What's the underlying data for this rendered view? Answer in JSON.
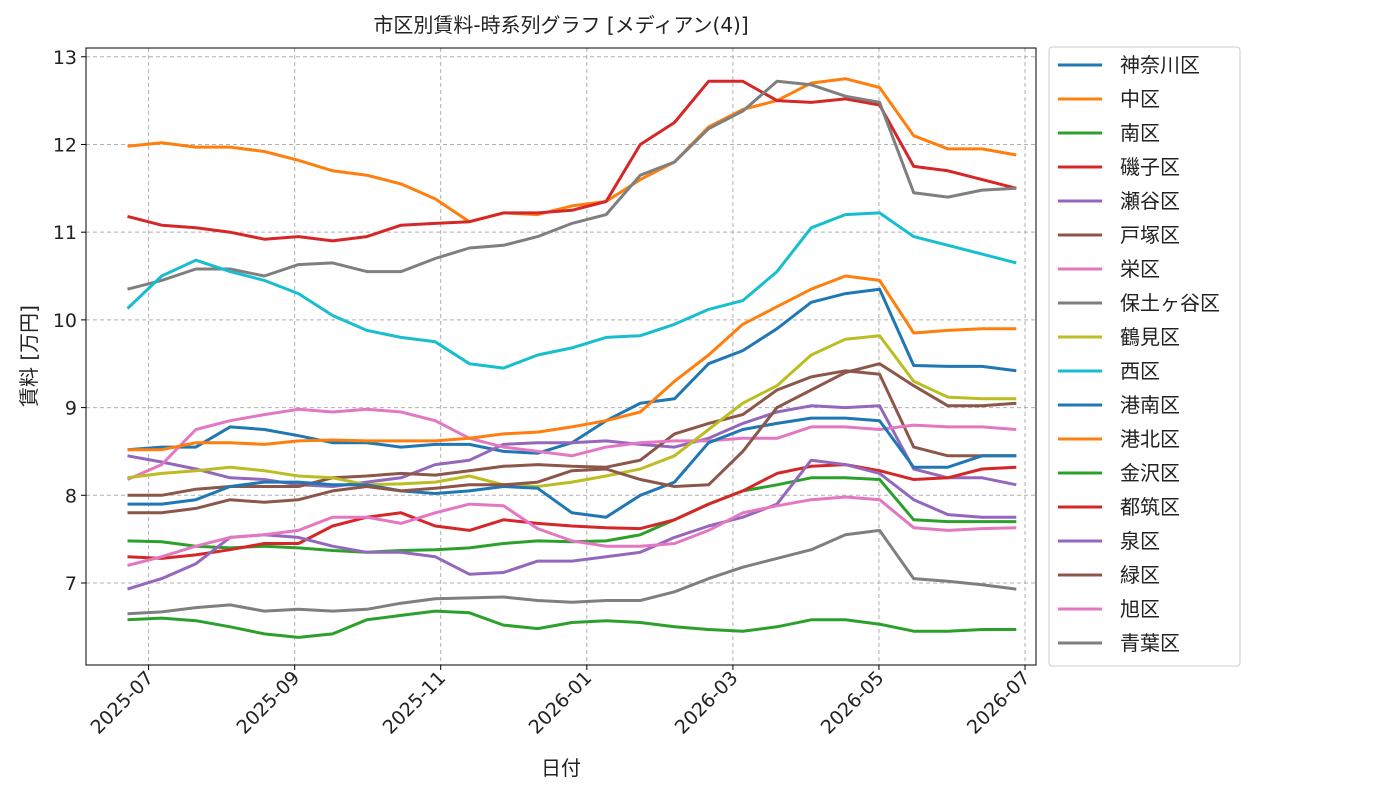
{
  "chart_data": {
    "type": "line",
    "title": "市区別賃料-時系列グラフ [メディアン(4)]",
    "xlabel": "日付",
    "ylabel": "賃料 [万円]",
    "xlim": [
      2025.4286,
      2026.5125
    ],
    "ylim": [
      6.065,
      13.1
    ],
    "xticks": [
      {
        "value": 2025.5,
        "label": "2025-07"
      },
      {
        "value": 2025.6667,
        "label": "2025-09"
      },
      {
        "value": 2025.8333,
        "label": "2025-11"
      },
      {
        "value": 2026.0,
        "label": "2026-01"
      },
      {
        "value": 2026.1667,
        "label": "2026-03"
      },
      {
        "value": 2026.3333,
        "label": "2026-05"
      },
      {
        "value": 2026.5,
        "label": "2026-07"
      }
    ],
    "yticks": [
      7,
      8,
      9,
      10,
      11,
      12,
      13
    ],
    "grid": true,
    "legend": "outside-right",
    "x": [
      2025.476,
      2025.515,
      2025.554,
      2025.593,
      2025.632,
      2025.671,
      2025.71,
      2025.749,
      2025.788,
      2025.827,
      2025.866,
      2025.905,
      2025.944,
      2025.983,
      2026.022,
      2026.061,
      2026.1,
      2026.139,
      2026.178,
      2026.217,
      2026.256,
      2026.295,
      2026.334,
      2026.373,
      2026.412,
      2026.451,
      2026.49
    ],
    "series": [
      {
        "name": "神奈川区",
        "color": "#1f77b4",
        "values": [
          8.52,
          8.55,
          8.55,
          8.78,
          8.75,
          8.68,
          8.6,
          8.6,
          8.55,
          8.58,
          8.58,
          8.5,
          8.48,
          8.6,
          8.85,
          9.05,
          9.1,
          9.5,
          9.65,
          9.9,
          10.2,
          10.3,
          10.35,
          9.48,
          9.47,
          9.47,
          9.42
        ]
      },
      {
        "name": "中区",
        "color": "#ff7f0e",
        "values": [
          11.98,
          12.02,
          11.97,
          11.97,
          11.92,
          11.82,
          11.7,
          11.65,
          11.55,
          11.38,
          11.12,
          11.22,
          11.2,
          11.3,
          11.35,
          11.6,
          11.8,
          12.2,
          12.4,
          12.5,
          12.7,
          12.75,
          12.65,
          12.1,
          11.95,
          11.95,
          11.88
        ]
      },
      {
        "name": "南区",
        "color": "#2ca02c",
        "values": [
          7.48,
          7.47,
          7.42,
          7.4,
          7.42,
          7.4,
          7.37,
          7.35,
          7.37,
          7.38,
          7.4,
          7.45,
          7.48,
          7.47,
          7.48,
          7.55,
          7.72,
          7.9,
          8.05,
          8.12,
          8.2,
          8.2,
          8.18,
          7.72,
          7.7,
          7.7,
          7.7
        ]
      },
      {
        "name": "磯子区",
        "color": "#d62728",
        "values": [
          11.18,
          11.08,
          11.05,
          11.0,
          10.92,
          10.95,
          10.9,
          10.95,
          11.08,
          11.1,
          11.12,
          11.22,
          11.22,
          11.25,
          11.35,
          12.0,
          12.25,
          12.72,
          12.72,
          12.5,
          12.48,
          12.52,
          12.45,
          11.75,
          11.7,
          11.6,
          11.5
        ]
      },
      {
        "name": "瀬谷区",
        "color": "#9467bd",
        "values": [
          8.45,
          8.38,
          8.3,
          8.2,
          8.18,
          8.12,
          8.1,
          8.15,
          8.2,
          8.35,
          8.4,
          8.58,
          8.6,
          8.6,
          8.62,
          8.58,
          8.55,
          8.65,
          8.82,
          8.95,
          9.02,
          9.0,
          9.02,
          8.3,
          8.2,
          8.2,
          8.12
        ]
      },
      {
        "name": "戸塚区",
        "color": "#8c564b",
        "values": [
          8.0,
          8.0,
          8.07,
          8.1,
          8.1,
          8.1,
          8.2,
          8.22,
          8.25,
          8.23,
          8.28,
          8.33,
          8.35,
          8.33,
          8.32,
          8.4,
          8.7,
          8.82,
          8.92,
          9.2,
          9.35,
          9.42,
          9.38,
          8.55,
          8.45,
          8.45,
          8.45
        ]
      },
      {
        "name": "栄区",
        "color": "#e377c2",
        "values": [
          8.18,
          8.35,
          8.75,
          8.85,
          8.92,
          8.98,
          8.95,
          8.98,
          8.95,
          8.85,
          8.65,
          8.55,
          8.5,
          8.45,
          8.55,
          8.6,
          8.62,
          8.62,
          8.65,
          8.65,
          8.78,
          8.78,
          8.75,
          8.8,
          8.78,
          8.78,
          8.75
        ]
      },
      {
        "name": "保土ヶ谷区",
        "color": "#7f7f7f",
        "values": [
          10.35,
          10.45,
          10.58,
          10.58,
          10.5,
          10.63,
          10.65,
          10.55,
          10.55,
          10.7,
          10.82,
          10.85,
          10.95,
          11.1,
          11.2,
          11.65,
          11.8,
          12.18,
          12.38,
          12.72,
          12.68,
          12.55,
          12.48,
          11.45,
          11.4,
          11.48,
          11.5
        ]
      },
      {
        "name": "鶴見区",
        "color": "#bcbd22",
        "values": [
          8.2,
          8.25,
          8.28,
          8.32,
          8.28,
          8.22,
          8.2,
          8.12,
          8.13,
          8.15,
          8.22,
          8.12,
          8.1,
          8.15,
          8.22,
          8.3,
          8.45,
          8.75,
          9.05,
          9.25,
          9.6,
          9.78,
          9.82,
          9.3,
          9.12,
          9.1,
          9.1
        ]
      },
      {
        "name": "西区",
        "color": "#17becf",
        "values": [
          10.13,
          10.5,
          10.68,
          10.55,
          10.45,
          10.3,
          10.05,
          9.88,
          9.8,
          9.75,
          9.5,
          9.45,
          9.6,
          9.68,
          9.8,
          9.82,
          9.95,
          10.12,
          10.22,
          10.55,
          11.05,
          11.2,
          11.22,
          10.95,
          10.85,
          10.75,
          10.65
        ]
      },
      {
        "name": "港南区",
        "color": "#1f77b4",
        "values": [
          7.9,
          7.9,
          7.95,
          8.1,
          8.15,
          8.15,
          8.12,
          8.12,
          8.05,
          8.02,
          8.05,
          8.1,
          8.08,
          7.8,
          7.75,
          8.0,
          8.15,
          8.6,
          8.75,
          8.82,
          8.88,
          8.88,
          8.85,
          8.32,
          8.32,
          8.45,
          8.45
        ]
      },
      {
        "name": "港北区",
        "color": "#ff7f0e",
        "values": [
          8.52,
          8.52,
          8.6,
          8.6,
          8.58,
          8.62,
          8.63,
          8.62,
          8.62,
          8.62,
          8.65,
          8.7,
          8.72,
          8.78,
          8.85,
          8.95,
          9.3,
          9.6,
          9.95,
          10.15,
          10.35,
          10.5,
          10.45,
          9.85,
          9.88,
          9.9,
          9.9
        ]
      },
      {
        "name": "金沢区",
        "color": "#2ca02c",
        "values": [
          6.58,
          6.6,
          6.57,
          6.5,
          6.42,
          6.38,
          6.42,
          6.58,
          6.63,
          6.68,
          6.66,
          6.52,
          6.48,
          6.55,
          6.57,
          6.55,
          6.5,
          6.47,
          6.45,
          6.5,
          6.58,
          6.58,
          6.53,
          6.45,
          6.45,
          6.47,
          6.47
        ]
      },
      {
        "name": "都筑区",
        "color": "#d62728",
        "values": [
          7.3,
          7.28,
          7.32,
          7.38,
          7.45,
          7.45,
          7.65,
          7.75,
          7.8,
          7.65,
          7.6,
          7.72,
          7.68,
          7.65,
          7.63,
          7.62,
          7.72,
          7.9,
          8.05,
          8.25,
          8.33,
          8.35,
          8.28,
          8.18,
          8.2,
          8.3,
          8.32
        ]
      },
      {
        "name": "泉区",
        "color": "#9467bd",
        "values": [
          6.93,
          7.05,
          7.22,
          7.52,
          7.55,
          7.52,
          7.42,
          7.35,
          7.35,
          7.3,
          7.1,
          7.12,
          7.25,
          7.25,
          7.3,
          7.35,
          7.52,
          7.65,
          7.75,
          7.9,
          8.4,
          8.35,
          8.25,
          7.95,
          7.78,
          7.75,
          7.75
        ]
      },
      {
        "name": "緑区",
        "color": "#8c564b",
        "values": [
          7.8,
          7.8,
          7.85,
          7.95,
          7.92,
          7.95,
          8.05,
          8.1,
          8.05,
          8.08,
          8.12,
          8.12,
          8.15,
          8.28,
          8.3,
          8.18,
          8.1,
          8.12,
          8.5,
          9.0,
          9.2,
          9.4,
          9.5,
          9.25,
          9.02,
          9.02,
          9.05
        ]
      },
      {
        "name": "旭区",
        "color": "#e377c2",
        "values": [
          7.2,
          7.3,
          7.42,
          7.52,
          7.55,
          7.6,
          7.75,
          7.75,
          7.68,
          7.8,
          7.9,
          7.88,
          7.62,
          7.48,
          7.42,
          7.42,
          7.45,
          7.6,
          7.8,
          7.88,
          7.95,
          7.98,
          7.95,
          7.63,
          7.6,
          7.62,
          7.63
        ]
      },
      {
        "name": "青葉区",
        "color": "#7f7f7f",
        "values": [
          6.65,
          6.67,
          6.72,
          6.75,
          6.68,
          6.7,
          6.68,
          6.7,
          6.77,
          6.82,
          6.83,
          6.84,
          6.8,
          6.78,
          6.8,
          6.8,
          6.9,
          7.05,
          7.18,
          7.28,
          7.38,
          7.55,
          7.6,
          7.05,
          7.02,
          6.98,
          6.93
        ]
      }
    ]
  }
}
